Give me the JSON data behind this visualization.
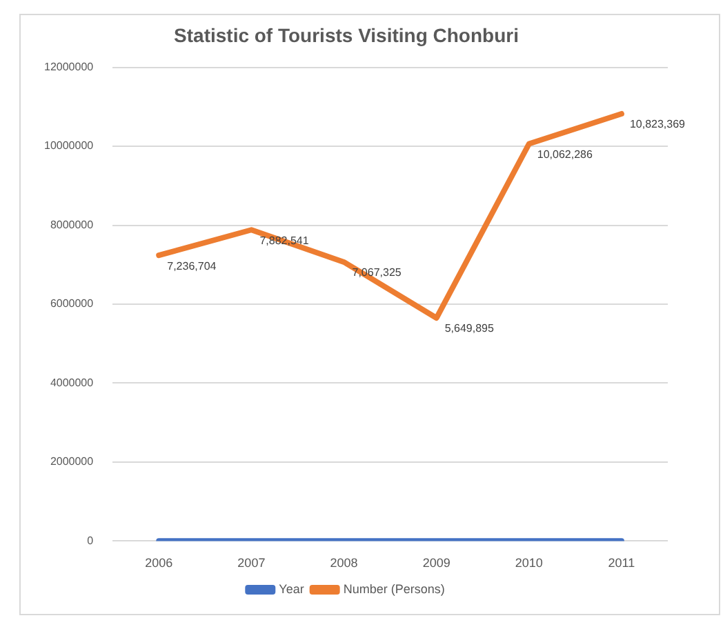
{
  "chart_data": {
    "type": "line",
    "title": "Statistic of Tourists Visiting Chonburi",
    "categories": [
      "2006",
      "2007",
      "2008",
      "2009",
      "2010",
      "2011"
    ],
    "series": [
      {
        "name": "Year",
        "color": "#4472c4",
        "values": [
          2006,
          2007,
          2008,
          2009,
          2010,
          2011
        ]
      },
      {
        "name": "Number (Persons)",
        "color": "#ed7d31",
        "values": [
          7236704,
          7882541,
          7067325,
          5649895,
          10062286,
          10823369
        ],
        "value_labels": [
          "7,236,704",
          "7,882,541",
          "7,067,325",
          "5,649,895",
          "10,062,286",
          "10,823,369"
        ]
      }
    ],
    "ylim": [
      0,
      12000000
    ],
    "yticks": [
      0,
      2000000,
      4000000,
      6000000,
      8000000,
      10000000,
      12000000
    ],
    "grid": "y",
    "legend": "bottom",
    "marker": "none",
    "line_style": "solid"
  }
}
